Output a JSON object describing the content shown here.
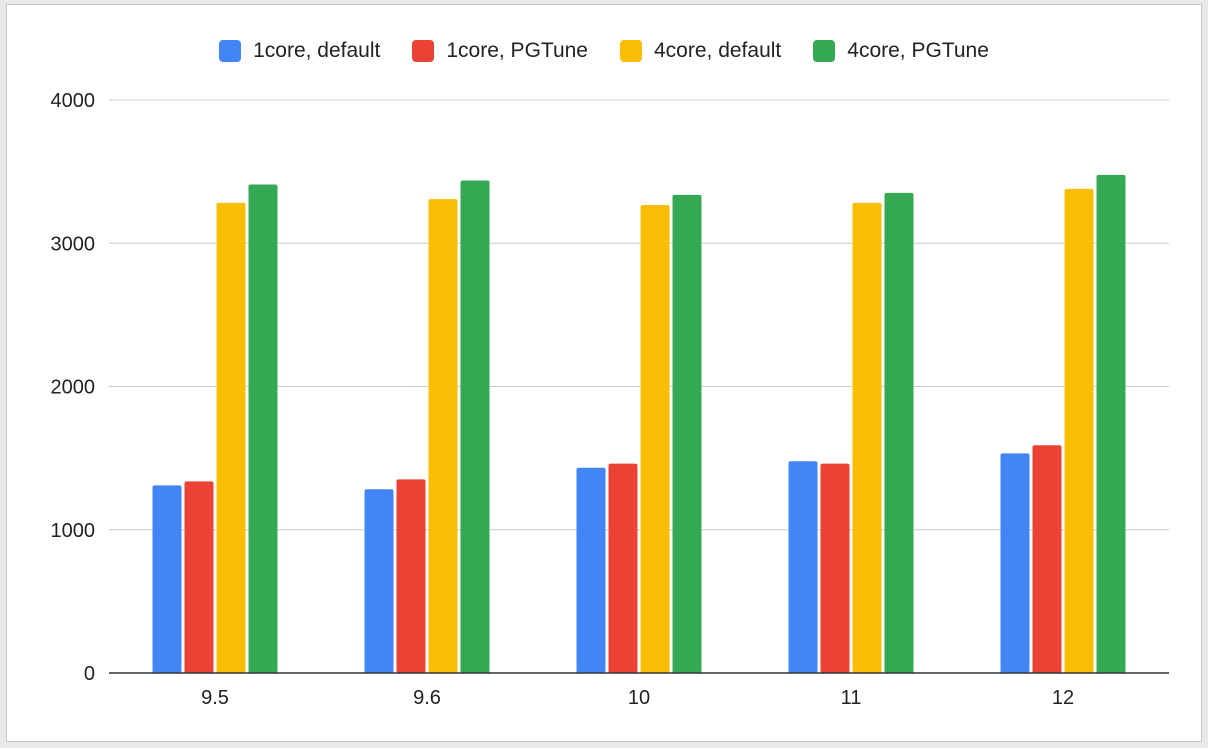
{
  "chart_data": {
    "type": "bar",
    "title": "",
    "xlabel": "",
    "ylabel": "",
    "categories": [
      "9.5",
      "9.6",
      "10",
      "11",
      "12"
    ],
    "series": [
      {
        "name": "1core, default",
        "color": "#4285F4",
        "values": [
          1310,
          1283,
          1433,
          1478,
          1533
        ]
      },
      {
        "name": "1core, PGTune",
        "color": "#EA4335",
        "values": [
          1338,
          1352,
          1462,
          1462,
          1590
        ]
      },
      {
        "name": "4core, default",
        "color": "#FBBC04",
        "values": [
          3282,
          3308,
          3267,
          3282,
          3380
        ]
      },
      {
        "name": "4core, PGTune",
        "color": "#34A853",
        "values": [
          3410,
          3438,
          3338,
          3352,
          3477
        ]
      }
    ],
    "ylim": [
      0,
      4000
    ],
    "yticks": [
      0,
      1000,
      2000,
      3000,
      4000
    ],
    "grid": true,
    "legend_position": "top"
  }
}
